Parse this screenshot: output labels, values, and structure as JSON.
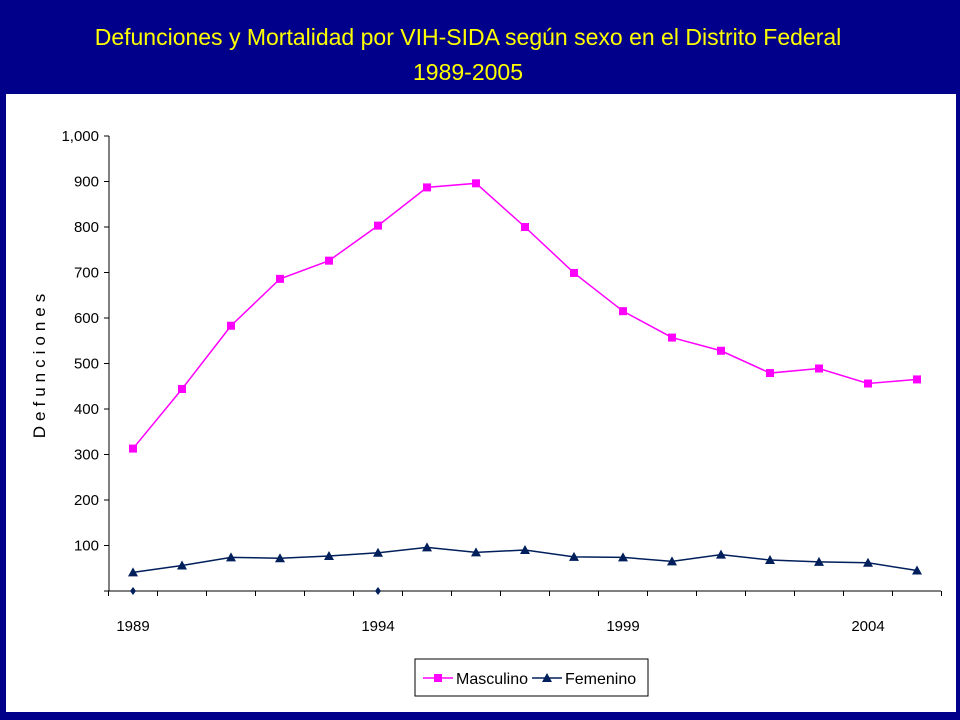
{
  "header": {
    "title_line1": "Defunciones y Mortalidad por VIH-SIDA según  sexo en el Distrito Federal",
    "title_line2": "1989-2005"
  },
  "colors": {
    "background": "#00008b",
    "title": "#ffff00",
    "masculino": "#ff00ff",
    "femenino": "#001f5b"
  },
  "chart_data": {
    "type": "line",
    "ylabel": "Defunciones",
    "xlabel": "",
    "x": [
      1989,
      1990,
      1991,
      1992,
      1993,
      1994,
      1995,
      1996,
      1997,
      1998,
      1999,
      2000,
      2001,
      2002,
      2003,
      2004,
      2005
    ],
    "xtick_labels": [
      "1989",
      "1994",
      "1999",
      "2004"
    ],
    "ytick_labels": [
      "100",
      "200",
      "300",
      "400",
      "500",
      "600",
      "700",
      "800",
      "900",
      "1,000"
    ],
    "ylim": [
      0,
      1000
    ],
    "series": [
      {
        "name": "Masculino",
        "marker": "square",
        "values": [
          313,
          444,
          583,
          686,
          726,
          803,
          887,
          896,
          800,
          699,
          615,
          557,
          528,
          479,
          489,
          456,
          465
        ]
      },
      {
        "name": "Femenino",
        "marker": "triangle",
        "values": [
          41,
          56,
          74,
          72,
          77,
          84,
          96,
          85,
          90,
          75,
          74,
          65,
          80,
          68,
          64,
          62,
          45
        ]
      }
    ],
    "extra_markers_at_zero": [
      1989,
      1994
    ],
    "legend": "bottom-center",
    "grid": false
  }
}
